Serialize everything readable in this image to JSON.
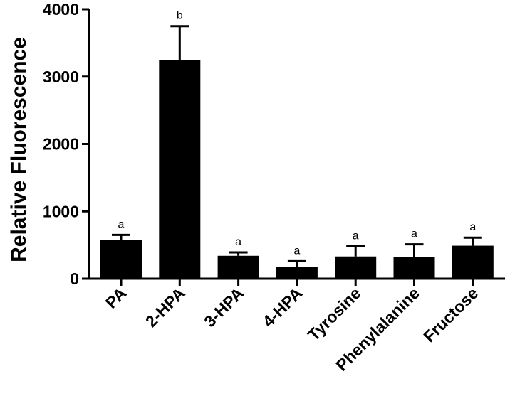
{
  "chart_data": {
    "type": "bar",
    "title": "",
    "xlabel": "",
    "ylabel": "Relative Fluorescence",
    "ylim": [
      0,
      4000
    ],
    "yticks": [
      0,
      1000,
      2000,
      3000,
      4000
    ],
    "grid": false,
    "categories": [
      "PA",
      "2-HPA",
      "3-HPA",
      "4-HPA",
      "Tyrosine",
      "Phenylalanine",
      "Fructose"
    ],
    "values": [
      570,
      3250,
      340,
      170,
      330,
      320,
      490
    ],
    "errors": [
      80,
      500,
      50,
      90,
      150,
      190,
      120
    ],
    "significance": [
      "a",
      "b",
      "a",
      "a",
      "a",
      "a",
      "a"
    ],
    "bar_color": "#000000"
  }
}
